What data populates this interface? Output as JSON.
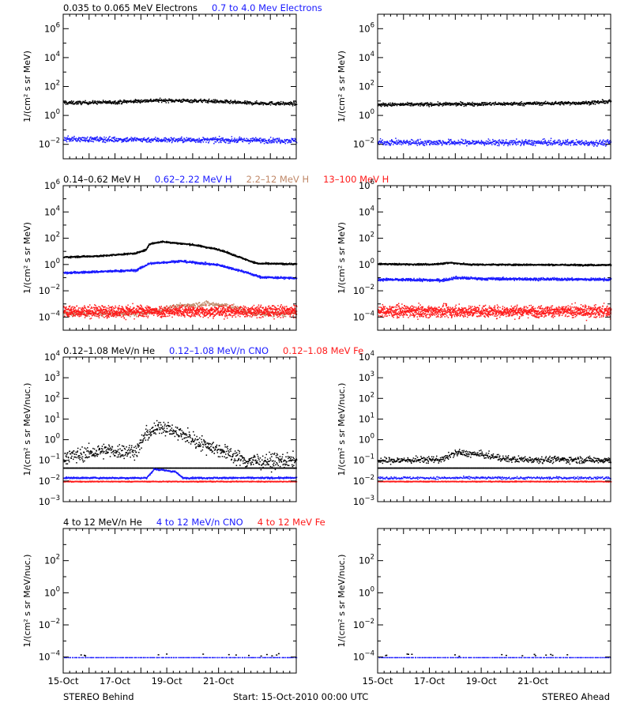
{
  "colors": {
    "black": "#000000",
    "blue": "#1a1aff",
    "brown": "#c08868",
    "red": "#ff1a1a"
  },
  "footer": {
    "left": "STEREO Behind",
    "center": "Start: 15-Oct-2010 00:00 UTC",
    "right": "STEREO Ahead"
  },
  "chart_data": [
    {
      "type": "scatter",
      "id": "electrons",
      "ylabel": "1/(cm² s sr MeV)",
      "yscale": "log",
      "ylim_exp": [
        -3,
        7
      ],
      "tick_exponents": [
        -2,
        0,
        2,
        4,
        6
      ],
      "legend": [
        {
          "text": "0.035 to 0.065 MeV Electrons",
          "color": "#000000"
        },
        {
          "text": "0.7 to 4.0 Mev Electrons",
          "color": "#1a1aff"
        }
      ],
      "x_tick_labels": [
        "15-Oct",
        "17-Oct",
        "19-Oct",
        "21-Oct"
      ],
      "xlim_days": [
        0,
        9
      ],
      "panels": [
        {
          "side": "STEREO Behind",
          "series": [
            {
              "color": "#000000",
              "profile": [
                [
                  0,
                  8
                ],
                [
                  2,
                  9
                ],
                [
                  3.5,
                  12
                ],
                [
                  5.5,
                  11
                ],
                [
                  7,
                  8
                ],
                [
                  9,
                  7
                ]
              ],
              "scatter": 0.06,
              "density": 700
            },
            {
              "color": "#1a1aff",
              "profile": [
                [
                  0,
                  0.025
                ],
                [
                  4.5,
                  0.022
                ],
                [
                  9,
                  0.02
                ]
              ],
              "scatter": 0.09,
              "density": 700
            }
          ]
        },
        {
          "side": "STEREO Ahead",
          "series": [
            {
              "color": "#000000",
              "profile": [
                [
                  0,
                  6
                ],
                [
                  5,
                  7
                ],
                [
                  8,
                  8
                ],
                [
                  9,
                  10
                ]
              ],
              "scatter": 0.06,
              "density": 700
            },
            {
              "color": "#1a1aff",
              "profile": [
                [
                  0,
                  0.015
                ],
                [
                  9,
                  0.014
                ]
              ],
              "scatter": 0.1,
              "density": 700
            }
          ]
        }
      ]
    },
    {
      "type": "scatter",
      "id": "protons",
      "ylabel": "1/(cm² s sr MeV)",
      "yscale": "log",
      "ylim_exp": [
        -5,
        6
      ],
      "tick_exponents": [
        -4,
        -2,
        0,
        2,
        4,
        6
      ],
      "legend": [
        {
          "text": "0.14–0.62 MeV H",
          "color": "#000000"
        },
        {
          "text": "0.62–2.22 MeV H",
          "color": "#1a1aff"
        },
        {
          "text": "2.2–12 MeV H",
          "color": "#c08868"
        },
        {
          "text": "13–100 MeV H",
          "color": "#ff1a1a"
        }
      ],
      "x_tick_labels": [
        "15-Oct",
        "17-Oct",
        "19-Oct",
        "21-Oct"
      ],
      "xlim_days": [
        0,
        9
      ],
      "panels": [
        {
          "side": "STEREO Behind",
          "series": [
            {
              "color": "#000000",
              "profile": [
                [
                  0,
                  4
                ],
                [
                  1.5,
                  5
                ],
                [
                  2.8,
                  8
                ],
                [
                  3.2,
                  15
                ],
                [
                  3.3,
                  40
                ],
                [
                  3.8,
                  60
                ],
                [
                  5,
                  35
                ],
                [
                  6,
                  15
                ],
                [
                  7.2,
                  2
                ],
                [
                  7.5,
                  1.3
                ],
                [
                  9,
                  1.2
                ]
              ],
              "scatter": 0.03,
              "density": 900
            },
            {
              "color": "#1a1aff",
              "profile": [
                [
                  0,
                  0.25
                ],
                [
                  2.8,
                  0.4
                ],
                [
                  3.3,
                  1.3
                ],
                [
                  4.5,
                  2
                ],
                [
                  6,
                  1
                ],
                [
                  7,
                  0.3
                ],
                [
                  7.6,
                  0.12
                ],
                [
                  9,
                  0.1
                ]
              ],
              "scatter": 0.04,
              "density": 900
            },
            {
              "color": "#c08868",
              "profile": [
                [
                  3.0,
                  0.0002
                ],
                [
                  4.5,
                  0.0008
                ],
                [
                  5.5,
                  0.0012
                ],
                [
                  6.5,
                  0.0007
                ],
                [
                  7.2,
                  0.0002
                ]
              ],
              "scatter": 0.1,
              "density": 600
            },
            {
              "color": "#ff1a1a",
              "profile": [
                [
                  0,
                  0.0003
                ],
                [
                  9,
                  0.0003
                ]
              ],
              "scatter": 0.22,
              "density": 1600
            }
          ]
        },
        {
          "side": "STEREO Ahead",
          "series": [
            {
              "color": "#000000",
              "profile": [
                [
                  0,
                  1.2
                ],
                [
                  2,
                  1.1
                ],
                [
                  2.8,
                  1.5
                ],
                [
                  3.5,
                  1.1
                ],
                [
                  9,
                  1.0
                ]
              ],
              "scatter": 0.03,
              "density": 900
            },
            {
              "color": "#1a1aff",
              "profile": [
                [
                  0,
                  0.08
                ],
                [
                  2.5,
                  0.07
                ],
                [
                  3,
                  0.11
                ],
                [
                  4,
                  0.09
                ],
                [
                  9,
                  0.08
                ]
              ],
              "scatter": 0.05,
              "density": 900
            },
            {
              "color": "#ff1a1a",
              "profile": [
                [
                  0,
                  0.0003
                ],
                [
                  9,
                  0.0003
                ]
              ],
              "scatter": 0.22,
              "density": 1600
            }
          ]
        }
      ]
    },
    {
      "type": "scatter",
      "id": "he-low",
      "ylabel": "1/(cm² s sr MeV/nuc.)",
      "yscale": "log",
      "ylim_exp": [
        -3,
        4
      ],
      "tick_exponents": [
        -3,
        -2,
        -1,
        0,
        1,
        2,
        3,
        4
      ],
      "legend": [
        {
          "text": "0.12–1.08 MeV/n He",
          "color": "#000000"
        },
        {
          "text": "0.12–1.08 MeV/n CNO",
          "color": "#1a1aff"
        },
        {
          "text": "0.12–1.08 MeV Fe",
          "color": "#ff1a1a"
        }
      ],
      "x_tick_labels": [
        "15-Oct",
        "17-Oct",
        "19-Oct",
        "21-Oct"
      ],
      "xlim_days": [
        0,
        9
      ],
      "panels": [
        {
          "side": "STEREO Behind",
          "series": [
            {
              "color": "#000000",
              "profile": [
                [
                  0,
                  0.15
                ],
                [
                  1.5,
                  0.3
                ],
                [
                  2.8,
                  0.3
                ],
                [
                  3.2,
                  2
                ],
                [
                  3.8,
                  5
                ],
                [
                  4.5,
                  2
                ],
                [
                  5.5,
                  0.6
                ],
                [
                  6.5,
                  0.2
                ],
                [
                  7,
                  0.1
                ],
                [
                  9,
                  0.1
                ]
              ],
              "scatter": 0.18,
              "density": 700
            },
            {
              "color": "#000000",
              "profile": [
                [
                  0,
                  0.045
                ],
                [
                  9,
                  0.045
                ]
              ],
              "scatter": 0.0,
              "density": 500
            },
            {
              "color": "#1a1aff",
              "profile": [
                [
                  0,
                  0.015
                ],
                [
                  3.2,
                  0.015
                ],
                [
                  3.5,
                  0.04
                ],
                [
                  4.3,
                  0.03
                ],
                [
                  4.6,
                  0.015
                ],
                [
                  9,
                  0.015
                ]
              ],
              "scatter": 0.02,
              "density": 700
            },
            {
              "color": "#ff1a1a",
              "profile": [
                [
                  0,
                  0.01
                ],
                [
                  9,
                  0.01
                ]
              ],
              "scatter": 0.01,
              "density": 700
            }
          ]
        },
        {
          "side": "STEREO Ahead",
          "series": [
            {
              "color": "#000000",
              "profile": [
                [
                  0,
                  0.1
                ],
                [
                  2.5,
                  0.12
                ],
                [
                  3,
                  0.25
                ],
                [
                  4,
                  0.2
                ],
                [
                  5,
                  0.12
                ],
                [
                  9,
                  0.11
                ]
              ],
              "scatter": 0.08,
              "density": 600
            },
            {
              "color": "#000000",
              "profile": [
                [
                  0,
                  0.045
                ],
                [
                  9,
                  0.045
                ]
              ],
              "scatter": 0.0,
              "density": 500
            },
            {
              "color": "#1a1aff",
              "profile": [
                [
                  0,
                  0.015
                ],
                [
                  9,
                  0.015
                ]
              ],
              "scatter": 0.03,
              "density": 400
            },
            {
              "color": "#ff1a1a",
              "profile": [
                [
                  0,
                  0.01
                ],
                [
                  9,
                  0.01
                ]
              ],
              "scatter": 0.01,
              "density": 700
            }
          ]
        }
      ]
    },
    {
      "type": "scatter",
      "id": "he-high",
      "ylabel": "1/(cm² s sr MeV/nuc.)",
      "yscale": "log",
      "ylim_exp": [
        -5,
        4
      ],
      "tick_exponents": [
        -4,
        -2,
        0,
        2
      ],
      "legend": [
        {
          "text": "4 to 12 MeV/n He",
          "color": "#000000"
        },
        {
          "text": "4 to 12 MeV/n CNO",
          "color": "#1a1aff"
        },
        {
          "text": "4 to 12 MeV Fe",
          "color": "#ff1a1a"
        }
      ],
      "x_tick_labels": [
        "15-Oct",
        "17-Oct",
        "19-Oct",
        "21-Oct"
      ],
      "xlim_days": [
        0,
        9
      ],
      "panels": [
        {
          "side": "STEREO Behind",
          "series": [
            {
              "color": "#1a1aff",
              "profile": [
                [
                  0,
                  0.0001
                ],
                [
                  9,
                  0.0001
                ]
              ],
              "scatter": 0.0,
              "density": 180
            },
            {
              "color": "#000000",
              "profile": [
                [
                  0,
                  0.00015
                ],
                [
                  9,
                  0.00015
                ]
              ],
              "scatter": 0.05,
              "density": 14
            }
          ]
        },
        {
          "side": "STEREO Ahead",
          "series": [
            {
              "color": "#1a1aff",
              "profile": [
                [
                  0,
                  0.0001
                ],
                [
                  9,
                  0.0001
                ]
              ],
              "scatter": 0.0,
              "density": 180
            },
            {
              "color": "#000000",
              "profile": [
                [
                  0,
                  0.00015
                ],
                [
                  9,
                  0.00015
                ]
              ],
              "scatter": 0.05,
              "density": 16
            }
          ]
        }
      ]
    }
  ]
}
